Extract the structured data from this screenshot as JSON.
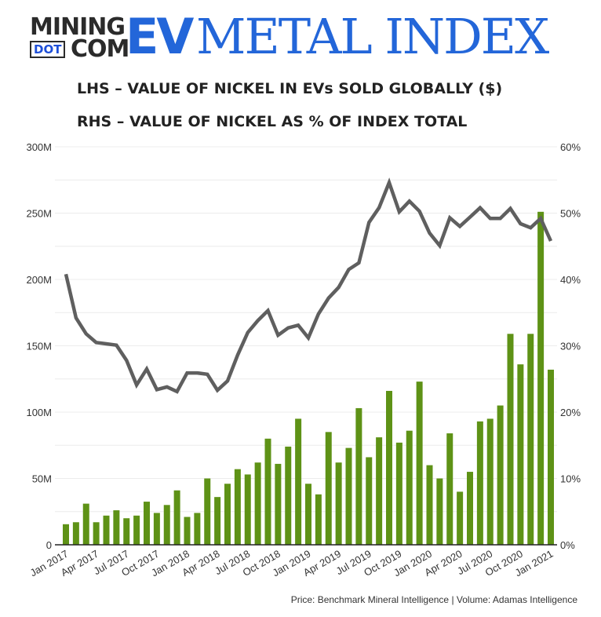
{
  "logo": {
    "line1": "MINING",
    "dot": "DOT",
    "com": "COM",
    "ev": "EV",
    "rest": "METAL INDEX"
  },
  "subtitle_lhs": "LHS – VALUE OF NICKEL IN EVs SOLD GLOBALLY ($)",
  "subtitle_rhs": "RHS – VALUE OF NICKEL AS % OF INDEX TOTAL",
  "source": "Price: Benchmark Mineral Intelligence | Volume: Adamas Intelligence",
  "colors": {
    "bars": "#5e9216",
    "line": "#5f5f5f",
    "brand": "#2366d9"
  },
  "chart_data": {
    "type": "bar+line",
    "x_start": "Jan 2017",
    "x_end": "Jan 2021",
    "frequency": "monthly",
    "x_tick_labels": [
      "Jan 2017",
      "Apr 2017",
      "Jul 2017",
      "Oct 2017",
      "Jan 2018",
      "Apr 2018",
      "Jul 2018",
      "Oct 2018",
      "Jan 2019",
      "Apr 2019",
      "Jul 2019",
      "Oct 2019",
      "Jan 2020",
      "Apr 2020",
      "Jul 2020",
      "Oct 2020",
      "Jan 2021"
    ],
    "left_axis": {
      "ylim": [
        0,
        300
      ],
      "unit": "M",
      "ticks": [
        "0",
        "50M",
        "100M",
        "150M",
        "200M",
        "250M",
        "300M"
      ]
    },
    "right_axis": {
      "ylim": [
        0,
        60
      ],
      "unit": "%",
      "ticks": [
        "0%",
        "10%",
        "20%",
        "30%",
        "40%",
        "50%",
        "60%"
      ]
    },
    "grid": true,
    "bars_value_usd_millions": [
      15.5,
      17,
      31,
      17,
      22,
      26,
      20,
      22,
      32.5,
      24,
      30,
      41,
      21,
      24,
      50,
      36,
      46,
      57,
      53,
      62,
      80,
      61,
      74,
      95,
      46,
      38,
      85,
      62,
      73,
      103,
      66,
      81,
      116,
      77,
      86,
      123,
      60,
      50,
      84,
      40,
      55,
      93,
      95,
      105,
      159,
      136,
      159,
      251,
      132
    ],
    "line_percent_of_index": [
      40.8,
      34.2,
      31.8,
      30.5,
      30.3,
      30.1,
      27.8,
      24.1,
      26.5,
      23.4,
      23.8,
      23.1,
      25.9,
      25.9,
      25.7,
      23.3,
      24.7,
      28.6,
      32,
      33.8,
      35.3,
      31.6,
      32.7,
      33.1,
      31.2,
      34.8,
      37.2,
      38.8,
      41.5,
      42.5,
      48.6,
      50.8,
      54.6,
      50.2,
      51.8,
      50.3,
      47,
      45.1,
      49.3,
      48,
      49.4,
      50.8,
      49.2,
      49.2,
      50.7,
      48.4,
      47.8,
      49.2,
      45.8
    ]
  }
}
